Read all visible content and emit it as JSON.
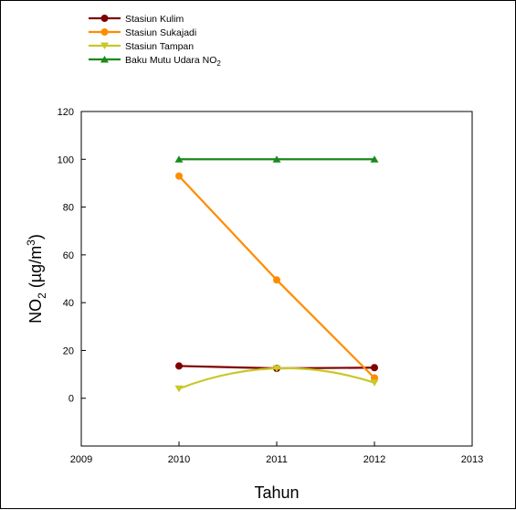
{
  "chart_data": {
    "type": "line",
    "xlabel": "Tahun",
    "ylabel_main": "NO",
    "ylabel_sub": "2",
    "ylabel_unit_open": " (µg/m",
    "ylabel_unit_sup": "3",
    "ylabel_unit_close": ")",
    "xlim": [
      2009,
      2013
    ],
    "ylim": [
      -20,
      120
    ],
    "xticks": [
      2009,
      2010,
      2011,
      2012,
      2013
    ],
    "yticks": [
      0,
      20,
      40,
      60,
      80,
      100,
      120
    ],
    "x": [
      2010,
      2011,
      2012
    ],
    "legend_position": "top-left",
    "series": [
      {
        "name": "Stasiun Kulim",
        "values": [
          13.5,
          12.5,
          12.8
        ],
        "color": "#7f0000",
        "marker": "circle",
        "curve": "straight"
      },
      {
        "name": "Stasiun Sukajadi",
        "values": [
          93,
          49.5,
          8.5
        ],
        "color": "#ff8c00",
        "marker": "circle",
        "curve": "straight"
      },
      {
        "name": "Stasiun Tampan",
        "values": [
          4,
          12.5,
          6.5
        ],
        "color": "#c8c828",
        "marker": "triangle-down",
        "curve": "smooth"
      },
      {
        "name": "Baku Mutu Udara NO",
        "name_sub": "2",
        "values": [
          100,
          100,
          100
        ],
        "color": "#1a8a1a",
        "marker": "triangle-up",
        "curve": "straight"
      }
    ]
  }
}
